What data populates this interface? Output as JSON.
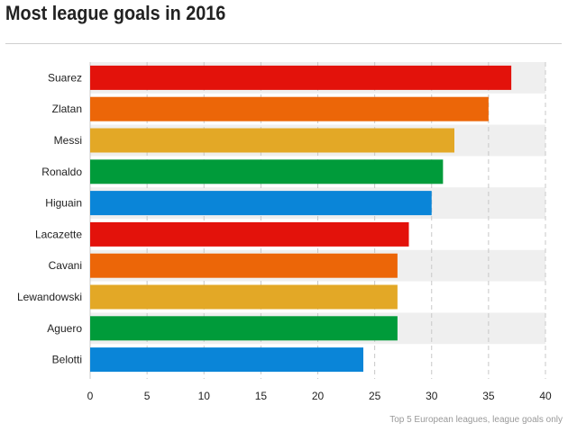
{
  "title": "Most league goals in 2016",
  "source_note": "Top 5 European leagues, league goals only",
  "chart_data": {
    "type": "bar",
    "orientation": "horizontal",
    "title": "Most league goals in 2016",
    "xlabel": "",
    "ylabel": "",
    "categories": [
      "Suarez",
      "Zlatan",
      "Messi",
      "Ronaldo",
      "Higuain",
      "Lacazette",
      "Cavani",
      "Lewandowski",
      "Aguero",
      "Belotti"
    ],
    "values": [
      37,
      35,
      32,
      31,
      30,
      28,
      27,
      27,
      27,
      24
    ],
    "xlim": [
      0,
      40
    ],
    "xticks": [
      0,
      5,
      10,
      15,
      20,
      25,
      30,
      35,
      40
    ],
    "grid": "vertical dashed",
    "bar_colors": [
      "#e3120b",
      "#ec6608",
      "#e3a826",
      "#009b3a",
      "#0a85d8",
      "#e3120b",
      "#ec6608",
      "#e3a826",
      "#009b3a",
      "#0a85d8"
    ],
    "band_color": "#efefef"
  }
}
